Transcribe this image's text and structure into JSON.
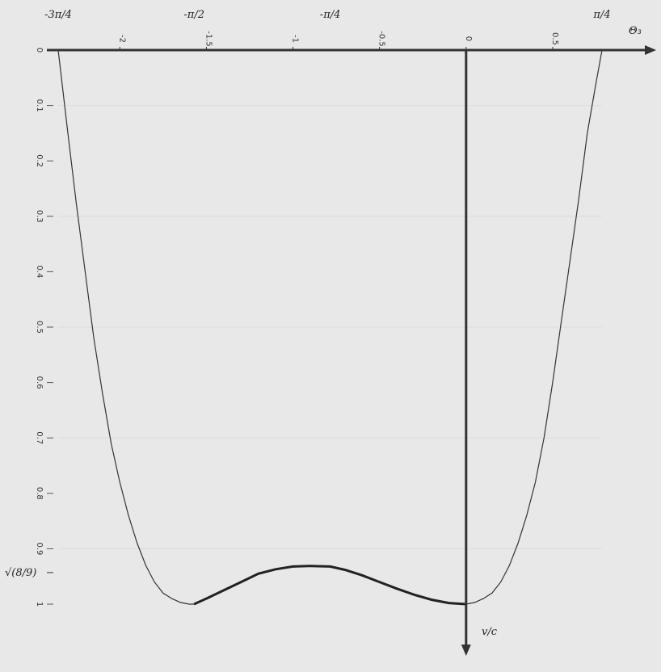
{
  "chart_data": {
    "type": "line",
    "title": "",
    "xlabel": "Θ₃",
    "ylabel": "v/c",
    "xlim": [
      -2.356,
      0.785
    ],
    "ylim": [
      0,
      1.05
    ],
    "y_inverted": true,
    "x_ticks": [
      "-2",
      "-1.5",
      "-1",
      "-0.5",
      "0",
      "0.5"
    ],
    "x_tick_values": [
      -2,
      -1.5,
      -1,
      -0.5,
      0,
      0.5
    ],
    "x_special_labels": [
      {
        "label": "-3π/4",
        "value": -2.356
      },
      {
        "label": "-π/2",
        "value": -1.571
      },
      {
        "label": "-π/4",
        "value": -0.785
      },
      {
        "label": "π/4",
        "value": 0.785
      }
    ],
    "y_ticks": [
      "0",
      "0.1",
      "0.2",
      "0.3",
      "0.4",
      "0.5",
      "0.6",
      "0.7",
      "0.8",
      "0.9",
      "1"
    ],
    "y_tick_values": [
      0,
      0.1,
      0.2,
      0.3,
      0.4,
      0.5,
      0.6,
      0.7,
      0.8,
      0.9,
      1.0
    ],
    "y_special_label": {
      "label": "√(8/9)",
      "value": 0.943
    },
    "series": [
      {
        "x": [
          -2.356,
          -2.33,
          -2.3,
          -2.25,
          -2.2,
          -2.15,
          -2.1,
          -2.05,
          -2.0,
          -1.95,
          -1.9,
          -1.85,
          -1.8,
          -1.75,
          -1.7,
          -1.65,
          -1.6,
          -1.571,
          -1.5,
          -1.4,
          -1.3,
          -1.2,
          -1.1,
          -1.0,
          -0.9,
          -0.785,
          -0.7,
          -0.6,
          -0.5,
          -0.4,
          -0.3,
          -0.2,
          -0.1,
          0.0,
          0.05,
          0.1,
          0.15,
          0.2,
          0.25,
          0.3,
          0.35,
          0.4,
          0.45,
          0.5,
          0.55,
          0.6,
          0.65,
          0.7,
          0.75,
          0.785
        ],
        "y": [
          0.0,
          0.07,
          0.15,
          0.28,
          0.4,
          0.52,
          0.62,
          0.71,
          0.78,
          0.84,
          0.89,
          0.93,
          0.96,
          0.98,
          0.99,
          0.997,
          1.0,
          1.0,
          0.99,
          0.975,
          0.96,
          0.945,
          0.937,
          0.932,
          0.931,
          0.932,
          0.938,
          0.948,
          0.96,
          0.972,
          0.983,
          0.992,
          0.998,
          1.0,
          0.997,
          0.99,
          0.98,
          0.96,
          0.93,
          0.89,
          0.84,
          0.78,
          0.7,
          0.6,
          0.49,
          0.38,
          0.27,
          0.15,
          0.06,
          0.0
        ]
      }
    ]
  }
}
